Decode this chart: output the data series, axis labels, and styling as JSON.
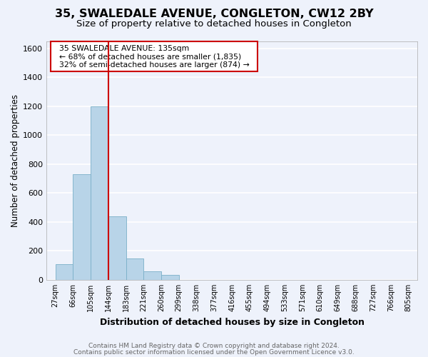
{
  "title": "35, SWALEDALE AVENUE, CONGLETON, CW12 2BY",
  "subtitle": "Size of property relative to detached houses in Congleton",
  "xlabel": "Distribution of detached houses by size in Congleton",
  "ylabel": "Number of detached properties",
  "bin_edges": [
    27,
    66,
    105,
    144,
    183,
    221,
    260,
    299,
    338,
    377,
    416,
    455,
    494,
    533,
    571,
    610,
    649,
    688,
    727,
    766,
    805
  ],
  "bar_values": [
    110,
    730,
    1200,
    440,
    145,
    60,
    35,
    0,
    0,
    0,
    0,
    0,
    0,
    0,
    0,
    0,
    0,
    0,
    0,
    0
  ],
  "bar_color": "#b8d4e8",
  "bar_edge_color": "#7aafc8",
  "property_line_color": "#cc0000",
  "property_line_x": 144,
  "ylim": [
    0,
    1650
  ],
  "yticks": [
    0,
    200,
    400,
    600,
    800,
    1000,
    1200,
    1400,
    1600
  ],
  "annotation_title": "35 SWALEDALE AVENUE: 135sqm",
  "annotation_line1": "← 68% of detached houses are smaller (1,835)",
  "annotation_line2": "32% of semi-detached houses are larger (874) →",
  "footer_line1": "Contains HM Land Registry data © Crown copyright and database right 2024.",
  "footer_line2": "Contains public sector information licensed under the Open Government Licence v3.0.",
  "background_color": "#eef2fb",
  "plot_background": "#eef2fb",
  "grid_color": "#ffffff",
  "title_fontsize": 11.5,
  "subtitle_fontsize": 9.5,
  "ylabel_fontsize": 8.5,
  "xlabel_fontsize": 9,
  "footer_fontsize": 6.5,
  "footer_color": "#666666"
}
